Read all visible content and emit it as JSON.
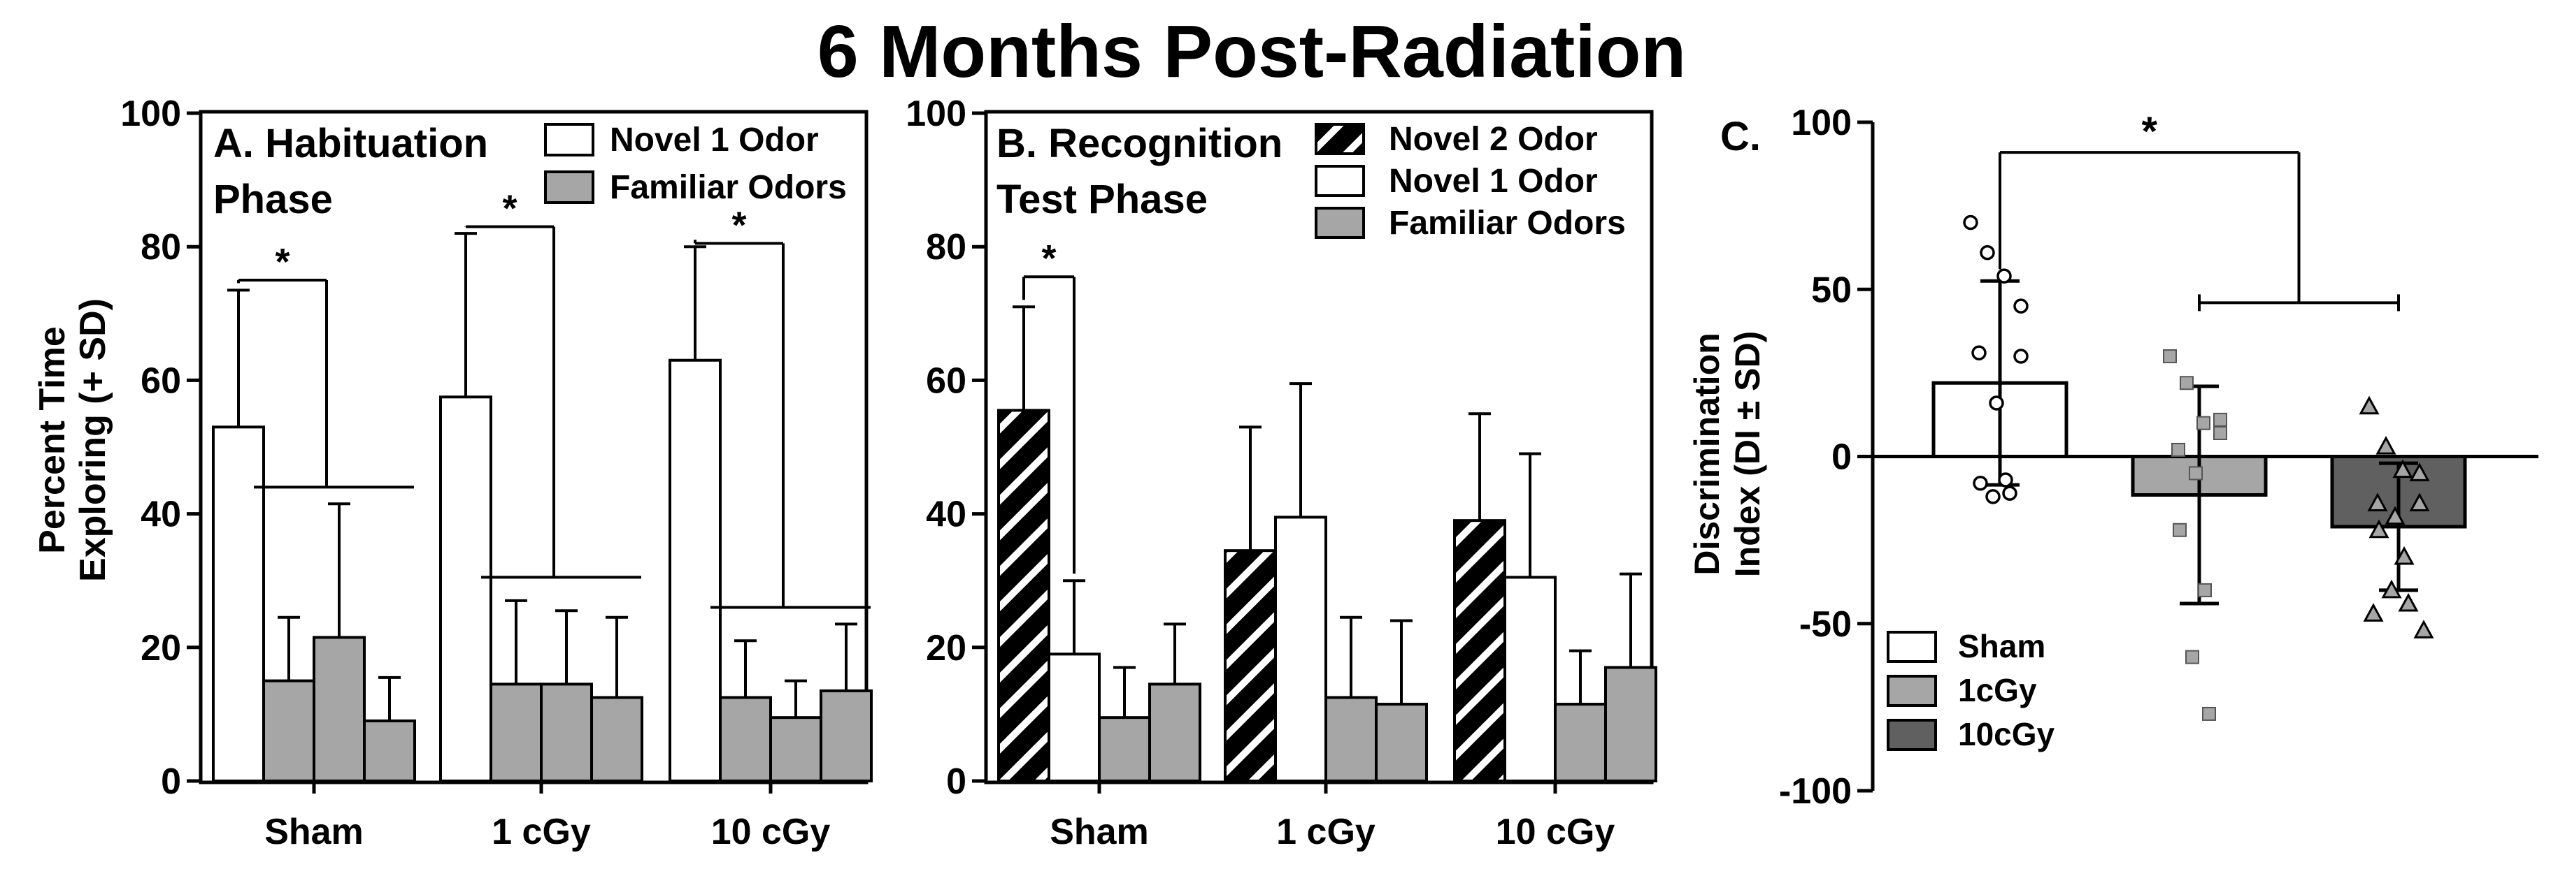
{
  "figure_title": "6 Months Post-Radiation",
  "colors": {
    "white": "#ffffff",
    "gray": "#a6a6a6",
    "dark": "#606060",
    "black": "#000000"
  },
  "shared_ylabel": [
    "Percent Time",
    "Exploring (+ SD)"
  ],
  "chart_data": [
    {
      "id": "A",
      "type": "bar",
      "panel_title": [
        "A. Habituation",
        "Phase"
      ],
      "ylabel": "Percent Time Exploring (+ SD)",
      "ylim": [
        0,
        100
      ],
      "yticks": [
        0,
        20,
        40,
        60,
        80,
        100
      ],
      "categories": [
        "Sham",
        "1 cGy",
        "10 cGy"
      ],
      "legend": [
        {
          "label": "Novel 1 Odor",
          "style": "white"
        },
        {
          "label": "Familiar Odors",
          "style": "gray"
        }
      ],
      "groups": [
        {
          "category": "Sham",
          "bars": [
            {
              "style": "white",
              "value": 53,
              "sd": 20.5
            },
            {
              "style": "gray",
              "value": 15,
              "sd": 9.5
            },
            {
              "style": "gray",
              "value": 21.5,
              "sd": 20
            },
            {
              "style": "gray",
              "value": 9,
              "sd": 6.5
            }
          ]
        },
        {
          "category": "1 cGy",
          "bars": [
            {
              "style": "white",
              "value": 57.5,
              "sd": 24.5
            },
            {
              "style": "gray",
              "value": 14.5,
              "sd": 12.5
            },
            {
              "style": "gray",
              "value": 14.5,
              "sd": 11
            },
            {
              "style": "gray",
              "value": 12.5,
              "sd": 12
            }
          ]
        },
        {
          "category": "10 cGy",
          "bars": [
            {
              "style": "white",
              "value": 63,
              "sd": 17
            },
            {
              "style": "gray",
              "value": 12.5,
              "sd": 8.5
            },
            {
              "style": "gray",
              "value": 9.5,
              "sd": 5.5
            },
            {
              "style": "gray",
              "value": 13.5,
              "sd": 10
            }
          ]
        }
      ],
      "significance": [
        {
          "group": 0,
          "bracket_y": 75,
          "familiar_y": 44,
          "label": "*"
        },
        {
          "group": 1,
          "bracket_y": 83,
          "familiar_y": 30.5,
          "label": "*"
        },
        {
          "group": 2,
          "bracket_y": 80.5,
          "familiar_y": 26,
          "label": "*"
        }
      ]
    },
    {
      "id": "B",
      "type": "bar",
      "panel_title": [
        "B. Recognition",
        "Test Phase"
      ],
      "ylabel": "Percent Time Exploring (+ SD)",
      "ylim": [
        0,
        100
      ],
      "yticks": [
        0,
        20,
        40,
        60,
        80,
        100
      ],
      "categories": [
        "Sham",
        "1 cGy",
        "10 cGy"
      ],
      "legend": [
        {
          "label": "Novel 2 Odor",
          "style": "hatch"
        },
        {
          "label": "Novel 1 Odor",
          "style": "white"
        },
        {
          "label": "Familiar Odors",
          "style": "gray"
        }
      ],
      "groups": [
        {
          "category": "Sham",
          "bars": [
            {
              "style": "hatch",
              "value": 55.5,
              "sd": 15.5
            },
            {
              "style": "white",
              "value": 19,
              "sd": 11
            },
            {
              "style": "gray",
              "value": 9.5,
              "sd": 7.5
            },
            {
              "style": "gray",
              "value": 14.5,
              "sd": 9
            }
          ]
        },
        {
          "category": "1 cGy",
          "bars": [
            {
              "style": "hatch",
              "value": 34.5,
              "sd": 18.5
            },
            {
              "style": "white",
              "value": 39.5,
              "sd": 20
            },
            {
              "style": "gray",
              "value": 12.5,
              "sd": 12
            },
            {
              "style": "gray",
              "value": 11.5,
              "sd": 12.5
            }
          ]
        },
        {
          "category": "10 cGy",
          "bars": [
            {
              "style": "hatch",
              "value": 39,
              "sd": 16
            },
            {
              "style": "white",
              "value": 30.5,
              "sd": 18.5
            },
            {
              "style": "gray",
              "value": 11.5,
              "sd": 8
            },
            {
              "style": "gray",
              "value": 17,
              "sd": 14
            }
          ]
        }
      ],
      "significance": [
        {
          "from_group": 0,
          "from_bar": 0,
          "to_bar": 1,
          "bracket_y": 75.5,
          "label": "*"
        }
      ]
    },
    {
      "id": "C",
      "type": "bar",
      "panel_title": "C.",
      "ylabel": [
        "Discrimination",
        "Index (DI ± SD)"
      ],
      "ylim": [
        -100,
        100
      ],
      "yticks": [
        -100,
        -50,
        0,
        50,
        100
      ],
      "categories": [
        "Sham",
        "1cGy",
        "10cGy"
      ],
      "legend": [
        {
          "label": "Sham",
          "style": "white"
        },
        {
          "label": "1cGy",
          "style": "gray"
        },
        {
          "label": "10cGy",
          "style": "dark"
        }
      ],
      "series": [
        {
          "name": "Sham",
          "style": "white",
          "marker": "circle",
          "mean": 22,
          "sd": 30.5,
          "points": [
            70,
            61,
            54,
            45,
            31,
            30,
            16,
            -8,
            -7,
            -12,
            -11
          ]
        },
        {
          "name": "1cGy",
          "style": "gray",
          "marker": "square",
          "mean": -11.5,
          "sd": 32.5,
          "points": [
            30,
            22,
            10,
            11,
            2,
            7,
            -5,
            -22,
            -40,
            -60,
            -77
          ]
        },
        {
          "name": "10cGy",
          "style": "dark",
          "marker": "triangle",
          "mean": -21,
          "sd": 19,
          "points": [
            15,
            3,
            -4,
            -5,
            -14,
            -14,
            -18,
            -22,
            -30,
            -40,
            -44,
            -47,
            -52
          ]
        }
      ],
      "significance": {
        "bracket_top_y": 91,
        "sub_bracket_y": 46,
        "label": "*"
      }
    }
  ]
}
